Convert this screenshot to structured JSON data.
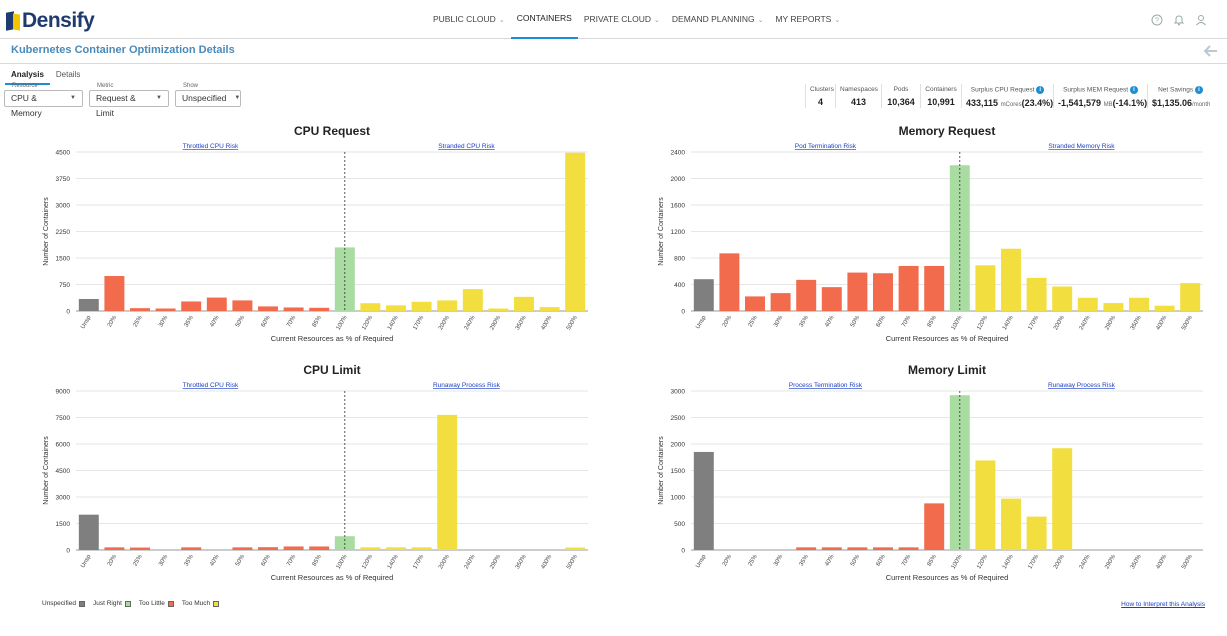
{
  "app": {
    "logo_text": "Densify"
  },
  "nav": {
    "items": [
      {
        "label": "PUBLIC CLOUD",
        "dropdown": true,
        "active": false
      },
      {
        "label": "CONTAINERS",
        "dropdown": false,
        "active": true
      },
      {
        "label": "PRIVATE CLOUD",
        "dropdown": true,
        "active": false
      },
      {
        "label": "DEMAND PLANNING",
        "dropdown": true,
        "active": false
      },
      {
        "label": "MY REPORTS",
        "dropdown": true,
        "active": false
      }
    ],
    "icons": [
      "help-icon",
      "bell-icon",
      "user-icon"
    ]
  },
  "page": {
    "title": "Kubernetes Container Optimization Details"
  },
  "tabs": [
    {
      "label": "Analysis",
      "active": true
    },
    {
      "label": "Details",
      "active": false
    }
  ],
  "filters": {
    "resource": {
      "label": "Resource",
      "value": "CPU & Memory"
    },
    "metric": {
      "label": "Metric",
      "value": "Request & Limit"
    },
    "show": {
      "label": "Show",
      "value": "Unspecified"
    }
  },
  "stats": [
    {
      "label": "Clusters",
      "value": "4",
      "unit": "",
      "extra": "",
      "info": false
    },
    {
      "label": "Namespaces",
      "value": "413",
      "unit": "",
      "extra": "",
      "info": false
    },
    {
      "label": "Pods",
      "value": "10,364",
      "unit": "",
      "extra": "",
      "info": false
    },
    {
      "label": "Containers",
      "value": "10,991",
      "unit": "",
      "extra": "",
      "info": false
    },
    {
      "label": "Surplus CPU Request",
      "value": "433,115",
      "unit": "mCores",
      "extra": "(23.4%)",
      "info": true
    },
    {
      "label": "Surplus MEM Request",
      "value": "-1,541,579",
      "unit": "MB",
      "extra": "(-14.1%)",
      "info": true
    },
    {
      "label": "Net Savings",
      "value": "$1,135.06",
      "unit": "/month",
      "extra": "",
      "info": true
    }
  ],
  "colors": {
    "unspecified": "#7f7f7f",
    "just_right": "#a8dca0",
    "too_little": "#f26b4c",
    "too_much": "#f2df3f",
    "link": "#1a3fc4",
    "accent": "#1a8fd6",
    "title": "#4a8ab8"
  },
  "legend": [
    {
      "label": "Unspecified",
      "color": "#7f7f7f"
    },
    {
      "label": "Just Right",
      "color": "#a8dca0"
    },
    {
      "label": "Too Little",
      "color": "#f26b4c"
    },
    {
      "label": "Too Much",
      "color": "#f2df3f"
    }
  ],
  "interpret_link": "How to Interpret this Analysis",
  "chart_data": [
    {
      "type": "bar",
      "title": "CPU Request",
      "xlabel": "Current Resources as % of Required",
      "ylabel": "Number of Containers",
      "left_risk": "Throttled CPU Risk",
      "right_risk": "Stranded CPU Risk",
      "ylim": [
        0,
        4500
      ],
      "yticks": [
        0,
        750,
        1500,
        2250,
        3000,
        3750,
        4500
      ],
      "categories": [
        "Unsp",
        "20%",
        "25%",
        "30%",
        "35%",
        "40%",
        "50%",
        "60%",
        "70%",
        "85%",
        "100%",
        "120%",
        "140%",
        "170%",
        "200%",
        "240%",
        "290%",
        "350%",
        "400%",
        "500%"
      ],
      "values": [
        340,
        990,
        80,
        70,
        270,
        380,
        300,
        130,
        100,
        90,
        1800,
        220,
        160,
        260,
        300,
        620,
        70,
        400,
        110,
        4480
      ],
      "status": [
        "u",
        "l",
        "l",
        "l",
        "l",
        "l",
        "l",
        "l",
        "l",
        "l",
        "r",
        "m",
        "m",
        "m",
        "m",
        "m",
        "m",
        "m",
        "m",
        "m"
      ]
    },
    {
      "type": "bar",
      "title": "Memory Request",
      "xlabel": "Current Resources as % of Required",
      "ylabel": "Number of Containers",
      "left_risk": "Pod Termination Risk",
      "right_risk": "Stranded Memory Risk",
      "ylim": [
        0,
        2400
      ],
      "yticks": [
        0,
        400,
        800,
        1200,
        1600,
        2000,
        2400
      ],
      "categories": [
        "Unsp",
        "20%",
        "25%",
        "30%",
        "35%",
        "40%",
        "50%",
        "60%",
        "70%",
        "85%",
        "100%",
        "120%",
        "140%",
        "170%",
        "200%",
        "240%",
        "290%",
        "350%",
        "400%",
        "500%"
      ],
      "values": [
        480,
        870,
        220,
        270,
        470,
        360,
        580,
        570,
        680,
        680,
        2200,
        690,
        940,
        500,
        370,
        200,
        120,
        200,
        80,
        420
      ],
      "status": [
        "u",
        "l",
        "l",
        "l",
        "l",
        "l",
        "l",
        "l",
        "l",
        "l",
        "r",
        "m",
        "m",
        "m",
        "m",
        "m",
        "m",
        "m",
        "m",
        "m"
      ]
    },
    {
      "type": "bar",
      "title": "CPU Limit",
      "xlabel": "Current Resources as % of Required",
      "ylabel": "Number of Containers",
      "left_risk": "Throttled CPU Risk",
      "right_risk": "Runaway Process Risk",
      "ylim": [
        0,
        9000
      ],
      "yticks": [
        0,
        1500,
        3000,
        4500,
        6000,
        7500,
        9000
      ],
      "categories": [
        "Unsp",
        "20%",
        "25%",
        "30%",
        "35%",
        "40%",
        "50%",
        "60%",
        "70%",
        "85%",
        "100%",
        "120%",
        "140%",
        "170%",
        "200%",
        "240%",
        "290%",
        "350%",
        "400%",
        "500%"
      ],
      "values": [
        2000,
        150,
        140,
        0,
        150,
        0,
        150,
        160,
        200,
        200,
        780,
        150,
        150,
        150,
        7650,
        0,
        0,
        0,
        0,
        140
      ],
      "status": [
        "u",
        "l",
        "l",
        "l",
        "l",
        "l",
        "l",
        "l",
        "l",
        "l",
        "r",
        "m",
        "m",
        "m",
        "m",
        "m",
        "m",
        "m",
        "m",
        "m"
      ]
    },
    {
      "type": "bar",
      "title": "Memory Limit",
      "xlabel": "Current Resources as % of Required",
      "ylabel": "Number of Containers",
      "left_risk": "Process Termination Risk",
      "right_risk": "Runaway Process Risk",
      "ylim": [
        0,
        3000
      ],
      "yticks": [
        0,
        500,
        1000,
        1500,
        2000,
        2500,
        3000
      ],
      "categories": [
        "Unsp",
        "20%",
        "25%",
        "30%",
        "35%",
        "40%",
        "50%",
        "60%",
        "70%",
        "85%",
        "100%",
        "120%",
        "140%",
        "170%",
        "200%",
        "240%",
        "290%",
        "350%",
        "400%",
        "500%"
      ],
      "values": [
        1850,
        0,
        0,
        0,
        50,
        50,
        50,
        50,
        50,
        880,
        2920,
        1690,
        970,
        630,
        1920,
        0,
        0,
        0,
        0,
        0
      ],
      "status": [
        "u",
        "l",
        "l",
        "l",
        "l",
        "l",
        "l",
        "l",
        "l",
        "l",
        "r",
        "m",
        "m",
        "m",
        "m",
        "m",
        "m",
        "m",
        "m",
        "m"
      ]
    }
  ]
}
